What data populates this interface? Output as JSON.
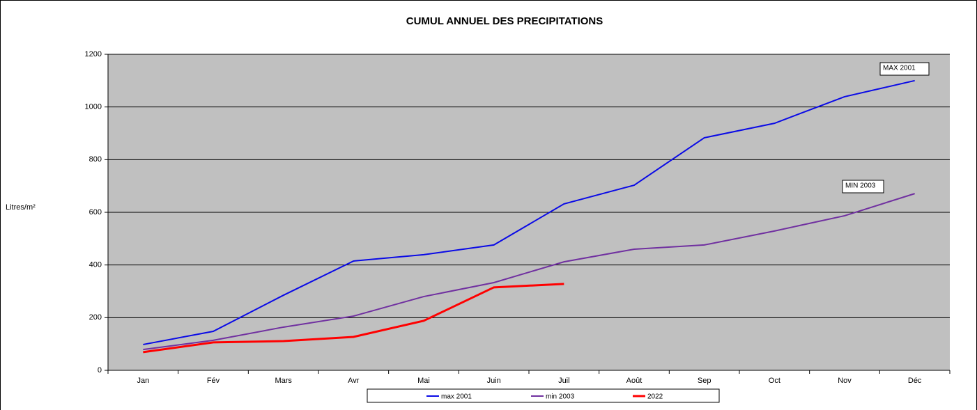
{
  "chart_data": {
    "type": "line",
    "title": "CUMUL ANNUEL DES PRECIPITATIONS",
    "y_label": "Litres/m²",
    "categories": [
      "Jan",
      "Fév",
      "Mars",
      "Avr",
      "Mai",
      "Juin",
      "Juil",
      "Août",
      "Sep",
      "Oct",
      "Nov",
      "Déc"
    ],
    "series": [
      {
        "name": "max 2001",
        "color": "#0a0ae6",
        "values": [
          98,
          148,
          285,
          415,
          439,
          476,
          632,
          703,
          883,
          938,
          1039,
          1100
        ]
      },
      {
        "name": "min 2003",
        "color": "#7030a0",
        "values": [
          79,
          114,
          164,
          206,
          280,
          333,
          412,
          460,
          476,
          529,
          587,
          671
        ]
      },
      {
        "name": "2022",
        "color": "#ff0000",
        "values": [
          69,
          106,
          111,
          127,
          188,
          315,
          328,
          null,
          null,
          null,
          null,
          null
        ]
      }
    ],
    "annotations": [
      "MAX 2001",
      "MIN 2003"
    ],
    "ylim": [
      0,
      1200
    ],
    "yticks": [
      0,
      200,
      400,
      600,
      800,
      1000,
      1200
    ],
    "grid": true,
    "legend": "bottom"
  }
}
